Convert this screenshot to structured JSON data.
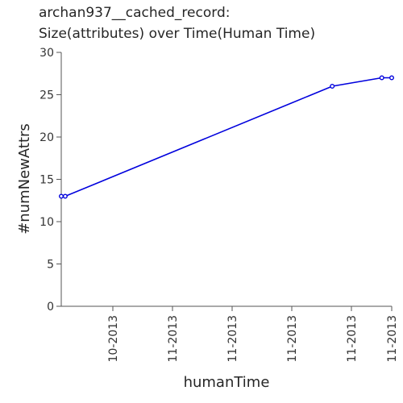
{
  "chart_data": {
    "type": "line",
    "title_line1": "archan937__cached_record:",
    "title_line2": "Size(attributes) over Time(Human Time)",
    "xlabel": "humanTime",
    "ylabel": "#numNewAttrs",
    "ylim": [
      0,
      30
    ],
    "yticks": [
      0,
      5,
      10,
      15,
      20,
      25,
      30
    ],
    "xtick_labels": [
      "10-2013",
      "11-2013",
      "11-2013",
      "11-2013",
      "11-2013",
      "11-2013"
    ],
    "grid": false,
    "series": [
      {
        "color": "#0000dd",
        "points": [
          {
            "x": 0.0,
            "y": 13
          },
          {
            "x": 0.012,
            "y": 13
          },
          {
            "x": 0.82,
            "y": 26
          },
          {
            "x": 0.97,
            "y": 27
          },
          {
            "x": 1.0,
            "y": 27
          }
        ]
      }
    ]
  }
}
